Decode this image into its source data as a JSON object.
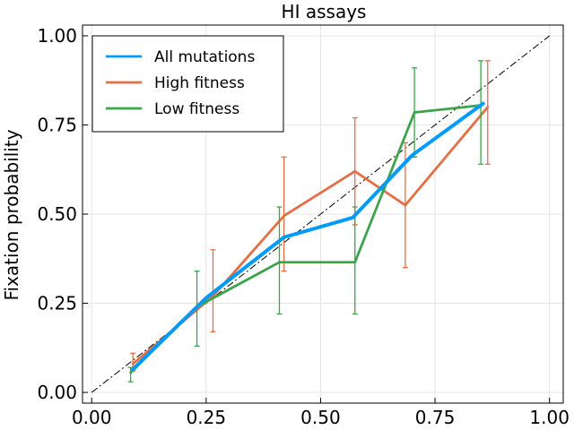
{
  "chart_data": {
    "type": "line",
    "title": "HI assays",
    "xlabel": "",
    "ylabel": "Fixation probability",
    "xlim": [
      -0.02,
      1.03
    ],
    "ylim": [
      -0.03,
      1.03
    ],
    "xticks": [
      0.0,
      0.25,
      0.5,
      0.75,
      1.0
    ],
    "xtick_labels": [
      "0.00",
      "0.25",
      "0.50",
      "0.75",
      "1.00"
    ],
    "yticks": [
      0.0,
      0.25,
      0.5,
      0.75,
      1.0
    ],
    "ytick_labels": [
      "0.00",
      "0.25",
      "0.50",
      "0.75",
      "1.00"
    ],
    "grid": true,
    "legend_position": "top-left",
    "reference_line": {
      "style": "dash-dot",
      "color": "#000000",
      "x": [
        0,
        1
      ],
      "y": [
        0,
        1
      ]
    },
    "series": [
      {
        "name": "All mutations",
        "color": "#009af9",
        "x": [
          0.09,
          0.25,
          0.42,
          0.57,
          0.7,
          0.855
        ],
        "y": [
          0.065,
          0.265,
          0.435,
          0.49,
          0.665,
          0.81
        ],
        "error_bars": false
      },
      {
        "name": "High fitness",
        "color": "#e26f46",
        "x": [
          0.09,
          0.265,
          0.42,
          0.575,
          0.685,
          0.865
        ],
        "y": [
          0.08,
          0.27,
          0.495,
          0.62,
          0.525,
          0.8
        ],
        "yerr_low": [
          0.06,
          0.17,
          0.34,
          0.47,
          0.35,
          0.64
        ],
        "yerr_high": [
          0.11,
          0.4,
          0.66,
          0.77,
          0.7,
          0.93
        ],
        "error_bars": true
      },
      {
        "name": "Low fitness",
        "color": "#3da44d",
        "x": [
          0.085,
          0.23,
          0.41,
          0.575,
          0.705,
          0.85
        ],
        "y": [
          0.055,
          0.24,
          0.365,
          0.365,
          0.785,
          0.805
        ],
        "yerr_low": [
          0.03,
          0.13,
          0.22,
          0.22,
          0.66,
          0.64
        ],
        "yerr_high": [
          0.07,
          0.34,
          0.52,
          0.52,
          0.91,
          0.93
        ],
        "error_bars": true
      }
    ]
  }
}
